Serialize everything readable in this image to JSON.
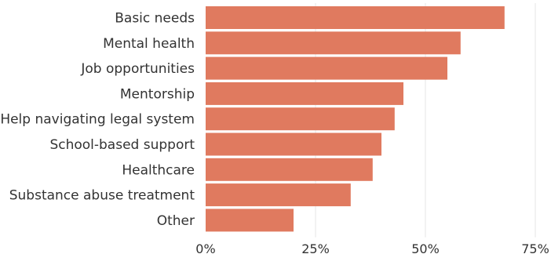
{
  "chart_data": {
    "type": "bar",
    "orientation": "horizontal",
    "categories": [
      "Basic needs",
      "Mental health",
      "Job opportunities ",
      "Mentorship",
      "Help navigating legal system",
      "School-based support",
      "Healthcare",
      "Substance abuse treatment",
      "Other"
    ],
    "values": [
      68,
      58,
      55,
      45,
      43,
      40,
      38,
      33,
      20
    ],
    "xlim": [
      0,
      75
    ],
    "x_ticks": [
      0,
      25,
      50,
      75
    ],
    "x_tick_labels": [
      "0%",
      "25%",
      "50%",
      "75%"
    ],
    "grid": "vertical",
    "bar_color": "#e07a5f",
    "title": "",
    "xlabel": "",
    "ylabel": ""
  }
}
